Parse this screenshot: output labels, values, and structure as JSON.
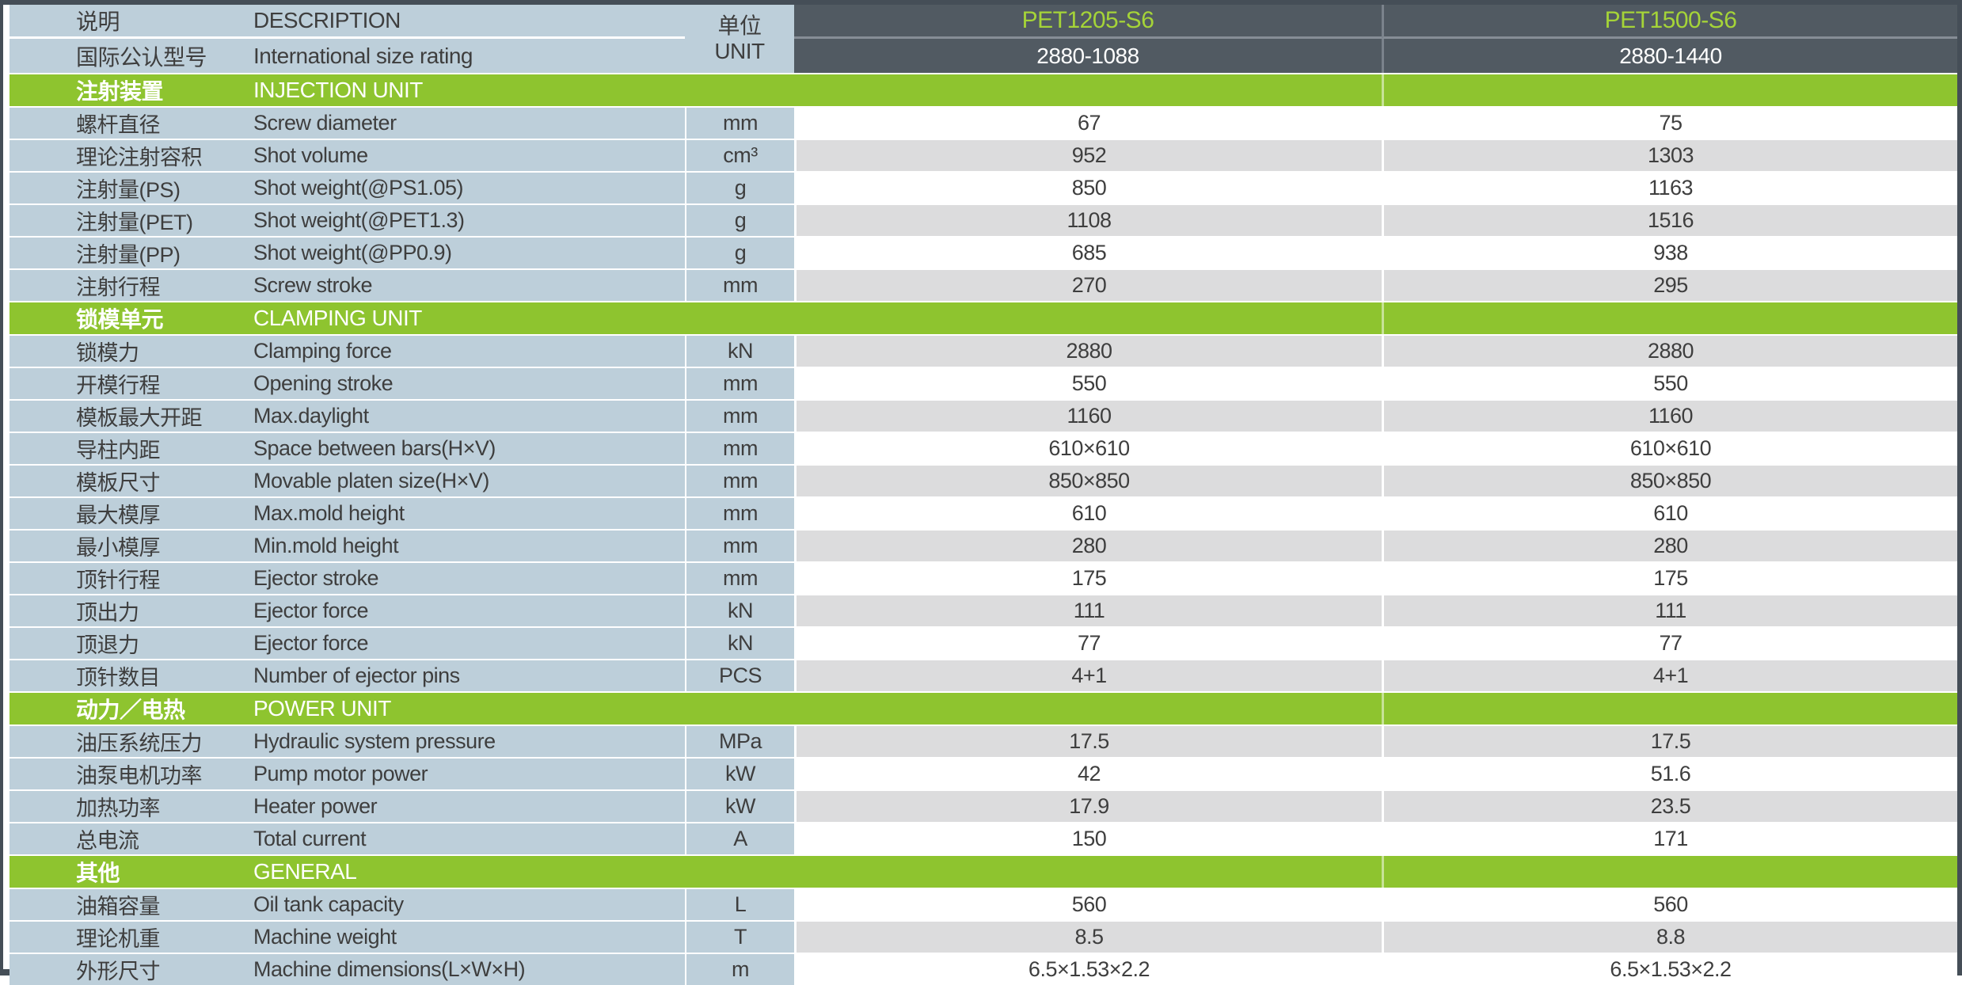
{
  "header": {
    "label_cn": "说明",
    "label_en": "DESCRIPTION",
    "unit_cn": "单位",
    "unit_en": "UNIT",
    "rating_label_cn": "国际公认型号",
    "rating_label_en": "International size rating",
    "models": [
      {
        "name": "PET1205-S6",
        "size_rating": "2880-1088"
      },
      {
        "name": "PET1500-S6",
        "size_rating": "2880-1440"
      }
    ]
  },
  "sections": [
    {
      "title_cn": "注射装置",
      "title_en": "INJECTION UNIT",
      "rows": [
        {
          "cn": "螺杆直径",
          "en": "Screw diameter",
          "unit": "mm",
          "v1": "67",
          "v2": "75",
          "shade": "white"
        },
        {
          "cn": "理论注射容积",
          "en": "Shot volume",
          "unit": "cm³",
          "v1": "952",
          "v2": "1303",
          "shade": "gray"
        },
        {
          "cn": "注射量(PS)",
          "en": "Shot weight(@PS1.05)",
          "unit": "g",
          "v1": "850",
          "v2": "1163",
          "shade": "white"
        },
        {
          "cn": "注射量(PET)",
          "en": "Shot weight(@PET1.3)",
          "unit": "g",
          "v1": "1108",
          "v2": "1516",
          "shade": "gray"
        },
        {
          "cn": "注射量(PP)",
          "en": "Shot weight(@PP0.9)",
          "unit": "g",
          "v1": "685",
          "v2": "938",
          "shade": "white"
        },
        {
          "cn": "注射行程",
          "en": "Screw stroke",
          "unit": "mm",
          "v1": "270",
          "v2": "295",
          "shade": "gray"
        }
      ]
    },
    {
      "title_cn": "锁模单元",
      "title_en": "CLAMPING UNIT",
      "rows": [
        {
          "cn": "锁模力",
          "en": "Clamping force",
          "unit": "kN",
          "v1": "2880",
          "v2": "2880",
          "shade": "gray"
        },
        {
          "cn": "开模行程",
          "en": "Opening stroke",
          "unit": "mm",
          "v1": "550",
          "v2": "550",
          "shade": "white"
        },
        {
          "cn": "模板最大开距",
          "en": "Max.daylight",
          "unit": "mm",
          "v1": "1160",
          "v2": "1160",
          "shade": "gray"
        },
        {
          "cn": "导柱内距",
          "en": "Space between bars(H×V)",
          "unit": "mm",
          "v1": "610×610",
          "v2": "610×610",
          "shade": "white"
        },
        {
          "cn": "模板尺寸",
          "en": "Movable platen size(H×V)",
          "unit": "mm",
          "v1": "850×850",
          "v2": "850×850",
          "shade": "gray"
        },
        {
          "cn": "最大模厚",
          "en": "Max.mold height",
          "unit": "mm",
          "v1": "610",
          "v2": "610",
          "shade": "white"
        },
        {
          "cn": "最小模厚",
          "en": "Min.mold height",
          "unit": "mm",
          "v1": "280",
          "v2": "280",
          "shade": "gray"
        },
        {
          "cn": "顶针行程",
          "en": "Ejector stroke",
          "unit": "mm",
          "v1": "175",
          "v2": "175",
          "shade": "white"
        },
        {
          "cn": "顶出力",
          "en": "Ejector force",
          "unit": "kN",
          "v1": "111",
          "v2": "111",
          "shade": "gray"
        },
        {
          "cn": "顶退力",
          "en": "Ejector force",
          "unit": "kN",
          "v1": "77",
          "v2": "77",
          "shade": "white"
        },
        {
          "cn": "顶针数目",
          "en": "Number of ejector pins",
          "unit": "PCS",
          "v1": "4+1",
          "v2": "4+1",
          "shade": "gray"
        }
      ]
    },
    {
      "title_cn": "动力／电热",
      "title_en": "POWER UNIT",
      "rows": [
        {
          "cn": "油压系统压力",
          "en": "Hydraulic system pressure",
          "unit": "MPa",
          "v1": "17.5",
          "v2": "17.5",
          "shade": "gray"
        },
        {
          "cn": "油泵电机功率",
          "en": "Pump motor power",
          "unit": "kW",
          "v1": "42",
          "v2": "51.6",
          "shade": "white"
        },
        {
          "cn": "加热功率",
          "en": "Heater power",
          "unit": "kW",
          "v1": "17.9",
          "v2": "23.5",
          "shade": "gray"
        },
        {
          "cn": "总电流",
          "en": "Total current",
          "unit": "A",
          "v1": "150",
          "v2": "171",
          "shade": "white"
        }
      ]
    },
    {
      "title_cn": "其他",
      "title_en": "GENERAL",
      "rows": [
        {
          "cn": "油箱容量",
          "en": "Oil tank capacity",
          "unit": "L",
          "v1": "560",
          "v2": "560",
          "shade": "white"
        },
        {
          "cn": "理论机重",
          "en": "Machine weight",
          "unit": "T",
          "v1": "8.5",
          "v2": "8.8",
          "shade": "gray"
        },
        {
          "cn": "外形尺寸",
          "en": "Machine dimensions(L×W×H)",
          "unit": "m",
          "v1": "6.5×1.53×2.2",
          "v2": "6.5×1.53×2.2",
          "shade": "white"
        }
      ]
    }
  ],
  "colors": {
    "section_green": "#8ec42f",
    "model_text_green": "#a5d438",
    "header_dark": "#515a62",
    "label_blue": "#bdcfda",
    "stripe_gray": "#dcdcdd",
    "text_dark": "#3e3e3e",
    "frame_dark": "#454e57"
  }
}
